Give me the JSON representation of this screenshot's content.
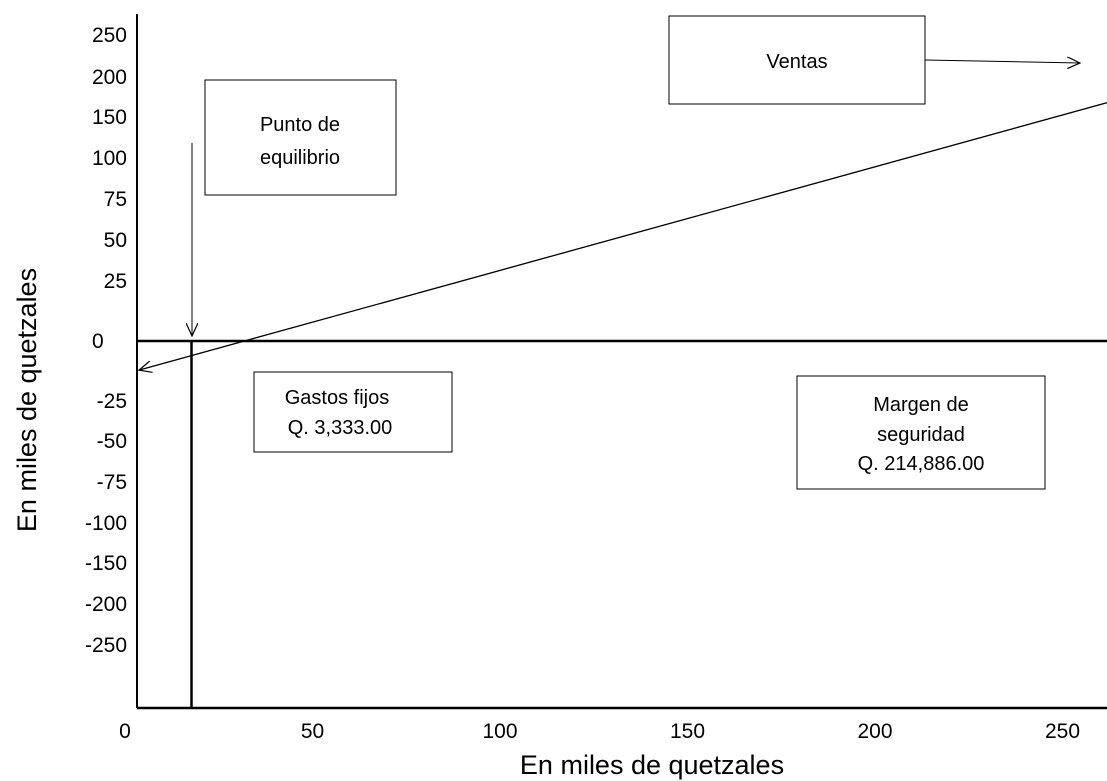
{
  "chart_data": {
    "type": "line",
    "title": "",
    "xlabel": "En miles de quetzales",
    "ylabel": "En miles de quetzales",
    "x_ticks": [
      "0",
      "50",
      "100",
      "150",
      "200",
      "250"
    ],
    "y_ticks": [
      "250",
      "200",
      "150",
      "100",
      "75",
      "50",
      "25",
      "0",
      "-25",
      "-50",
      "-75",
      "-100",
      "-150",
      "-200",
      "-250"
    ],
    "series": [
      {
        "name": "Ventas",
        "x": [
          0,
          268
        ],
        "y": [
          -25,
          210
        ]
      }
    ],
    "break_even_x": 18,
    "annotations": [
      {
        "id": "ventas",
        "lines": [
          "Ventas"
        ]
      },
      {
        "id": "equilibrio",
        "lines": [
          "Punto de",
          "equilibrio"
        ]
      },
      {
        "id": "gastos",
        "lines": [
          "Gastos fijos",
          "Q. 3,333.00"
        ]
      },
      {
        "id": "margen",
        "lines": [
          "Margen de",
          "seguridad",
          "Q. 214,886.00"
        ]
      }
    ],
    "grid": false,
    "legend": "none"
  }
}
